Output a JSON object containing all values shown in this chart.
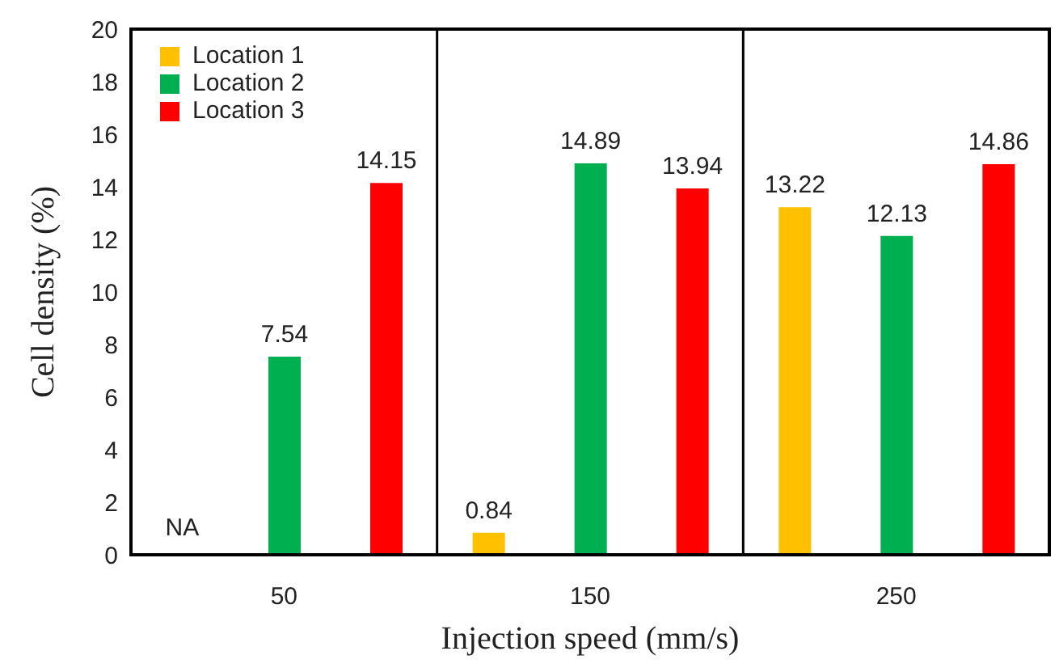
{
  "chart_data": {
    "type": "bar",
    "xlabel": "Injection speed (mm/s)",
    "ylabel": "Cell density (%)",
    "categories": [
      "50",
      "150",
      "250"
    ],
    "series": [
      {
        "name": "Location 1",
        "color": "#ffc000",
        "values": [
          null,
          0.84,
          13.22
        ],
        "value_labels": [
          "NA",
          "0.84",
          "13.22"
        ]
      },
      {
        "name": "Location 2",
        "color": "#00b050",
        "values": [
          7.54,
          14.89,
          12.13
        ],
        "value_labels": [
          "7.54",
          "14.89",
          "12.13"
        ]
      },
      {
        "name": "Location 3",
        "color": "#ff0000",
        "values": [
          14.15,
          13.94,
          14.86
        ],
        "value_labels": [
          "14.15",
          "13.94",
          "14.86"
        ]
      }
    ],
    "ylim": [
      0,
      20
    ],
    "yticks": [
      0,
      2,
      4,
      6,
      8,
      10,
      12,
      14,
      16,
      18,
      20
    ],
    "legend": "top left",
    "grid": false
  }
}
